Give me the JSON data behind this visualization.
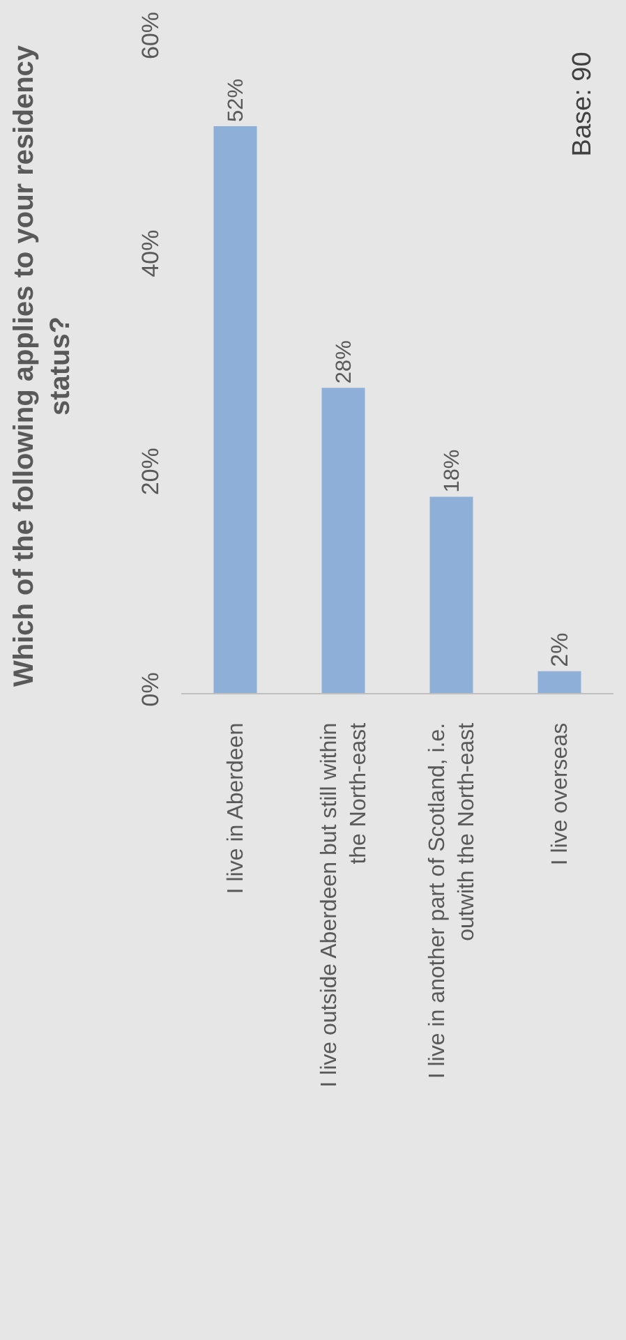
{
  "chart_data": {
    "type": "bar",
    "title": "Which of the following applies to your residency status?",
    "categories": [
      "I live in Aberdeen",
      "I live outside Aberdeen but still within the North-east",
      "I live in another part of Scotland, i.e. outwith the North-east",
      "I live overseas"
    ],
    "values": [
      52,
      28,
      18,
      2
    ],
    "color": "#8eb0d8",
    "value_labels": [
      "52%",
      "28%",
      "18%",
      "2%"
    ],
    "ylim": [
      0,
      60
    ],
    "yticks": [
      {
        "value": 0,
        "label": "0%"
      },
      {
        "value": 20,
        "label": "20%"
      },
      {
        "value": 40,
        "label": "40%"
      },
      {
        "value": 60,
        "label": "60%"
      }
    ],
    "grid": false,
    "legend": false,
    "annotations": [
      "Base: 90"
    ]
  }
}
